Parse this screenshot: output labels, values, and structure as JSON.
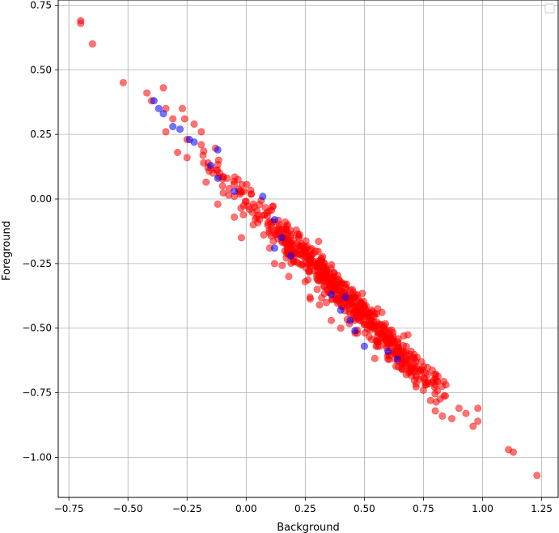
{
  "chart_data": {
    "type": "scatter",
    "title": "",
    "xlabel": "Background",
    "ylabel": "Foreground",
    "xlim": [
      -0.795,
      1.32
    ],
    "ylim": [
      -1.155,
      0.77
    ],
    "xticks": [
      -0.75,
      -0.5,
      -0.25,
      0.0,
      0.25,
      0.5,
      0.75,
      1.0,
      1.25
    ],
    "xtick_labels": [
      "−0.75",
      "−0.50",
      "−0.25",
      "0.00",
      "0.25",
      "0.50",
      "0.75",
      "1.00",
      "1.25"
    ],
    "yticks": [
      0.75,
      0.5,
      0.25,
      0.0,
      -0.25,
      -0.5,
      -0.75,
      -1.0
    ],
    "ytick_labels": [
      "0.75",
      "0.50",
      "0.25",
      "0.00",
      "−0.25",
      "−0.50",
      "−0.75",
      "−1.00"
    ],
    "grid": true,
    "legend": "top-right (empty)",
    "series": [
      {
        "color": "#ff0000",
        "opacity": 0.55,
        "trend": {
          "x_start": -0.7,
          "x_end": 1.23,
          "slope": -0.91,
          "intercept": 0.0,
          "noise": 0.035,
          "n": 620
        },
        "points": [
          [
            -0.7,
            0.69
          ],
          [
            -0.7,
            0.68
          ],
          [
            -0.65,
            0.6
          ],
          [
            -0.52,
            0.45
          ],
          [
            -0.42,
            0.41
          ],
          [
            -0.4,
            0.38
          ],
          [
            -0.35,
            0.43
          ],
          [
            -0.34,
            0.35
          ],
          [
            -0.34,
            0.26
          ],
          [
            -0.31,
            0.31
          ],
          [
            -0.29,
            0.18
          ],
          [
            -0.27,
            0.35
          ],
          [
            -0.26,
            0.31
          ],
          [
            -0.25,
            0.23
          ],
          [
            -0.25,
            0.16
          ],
          [
            -0.22,
            0.29
          ],
          [
            -0.19,
            0.26
          ],
          [
            -0.19,
            0.21
          ],
          [
            -0.18,
            0.14
          ],
          [
            -0.15,
            0.12
          ],
          [
            -0.14,
            0.1
          ],
          [
            -0.12,
            -0.02
          ],
          [
            -0.1,
            0.05
          ],
          [
            -0.08,
            0.08
          ],
          [
            -0.05,
            0.01
          ],
          [
            -0.05,
            -0.07
          ],
          [
            -0.03,
            0.03
          ],
          [
            -0.02,
            -0.15
          ],
          [
            0.03,
            -0.1
          ],
          [
            0.1,
            -0.19
          ],
          [
            0.12,
            -0.25
          ],
          [
            0.18,
            -0.3
          ],
          [
            0.2,
            -0.24
          ],
          [
            0.25,
            -0.32
          ],
          [
            0.27,
            -0.38
          ],
          [
            0.3,
            -0.35
          ],
          [
            0.31,
            -0.41
          ],
          [
            0.36,
            -0.47
          ],
          [
            0.4,
            -0.5
          ],
          [
            0.47,
            -0.52
          ],
          [
            0.55,
            -0.57
          ],
          [
            0.6,
            -0.62
          ],
          [
            0.66,
            -0.66
          ],
          [
            0.72,
            -0.69
          ],
          [
            0.75,
            -0.74
          ],
          [
            0.78,
            -0.78
          ],
          [
            0.8,
            -0.82
          ],
          [
            0.83,
            -0.84
          ],
          [
            0.87,
            -0.85
          ],
          [
            0.9,
            -0.81
          ],
          [
            0.93,
            -0.83
          ],
          [
            0.96,
            -0.88
          ],
          [
            0.98,
            -0.81
          ],
          [
            0.98,
            -0.86
          ],
          [
            1.11,
            -0.97
          ],
          [
            1.13,
            -0.98
          ],
          [
            1.23,
            -1.07
          ]
        ]
      },
      {
        "color": "#0000ff",
        "opacity": 0.55,
        "points": [
          [
            -0.39,
            0.38
          ],
          [
            -0.37,
            0.35
          ],
          [
            -0.35,
            0.33
          ],
          [
            -0.31,
            0.28
          ],
          [
            -0.28,
            0.27
          ],
          [
            -0.24,
            0.23
          ],
          [
            -0.22,
            0.22
          ],
          [
            -0.15,
            0.13
          ],
          [
            -0.12,
            0.19
          ],
          [
            -0.12,
            0.08
          ],
          [
            -0.05,
            0.03
          ],
          [
            0.07,
            0.01
          ],
          [
            0.12,
            -0.08
          ],
          [
            0.15,
            -0.15
          ],
          [
            0.12,
            -0.19
          ],
          [
            0.19,
            -0.22
          ],
          [
            0.36,
            -0.37
          ],
          [
            0.42,
            -0.38
          ],
          [
            0.4,
            -0.43
          ],
          [
            0.44,
            -0.47
          ],
          [
            0.46,
            -0.51
          ],
          [
            0.5,
            -0.57
          ],
          [
            0.6,
            -0.59
          ],
          [
            0.64,
            -0.62
          ]
        ]
      }
    ]
  }
}
